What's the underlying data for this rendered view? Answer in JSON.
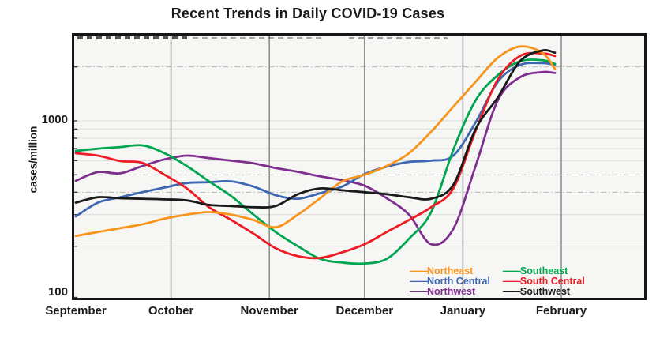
{
  "chart_data": {
    "type": "line",
    "title": "Recent Trends in Daily COVID-19 Cases",
    "ylabel": "cases/million",
    "y_scale": "log",
    "ylim": [
      100,
      3080
    ],
    "y_tick_labels": [
      {
        "value": 100,
        "label": "100"
      },
      {
        "value": 1000,
        "label": "1000"
      }
    ],
    "y_gridline_values": [
      200,
      300,
      400,
      500,
      600,
      700,
      800,
      900,
      1000,
      2000
    ],
    "y_dashdot_values": [
      400,
      500,
      2000
    ],
    "x_months": [
      "September",
      "October",
      "November",
      "December",
      "January",
      "February"
    ],
    "x_month_start_days": [
      0,
      30,
      61,
      91,
      122,
      153
    ],
    "x_days": [
      0,
      7,
      14,
      21,
      28,
      35,
      42,
      49,
      56,
      63,
      70,
      77,
      84,
      91,
      98,
      105,
      112,
      119,
      126,
      133,
      140,
      147,
      151
    ],
    "series": [
      {
        "name": "Northeast",
        "color": "#F7941D",
        "values": [
          228,
          240,
          252,
          265,
          285,
          300,
          310,
          300,
          280,
          255,
          300,
          370,
          460,
          500,
          560,
          660,
          870,
          1200,
          1650,
          2250,
          2600,
          2400,
          1950
        ]
      },
      {
        "name": "Southeast",
        "color": "#00A550",
        "values": [
          680,
          700,
          715,
          730,
          660,
          560,
          460,
          380,
          300,
          240,
          200,
          170,
          162,
          160,
          170,
          220,
          310,
          690,
          1300,
          1800,
          2150,
          2180,
          2080
        ]
      },
      {
        "name": "North Central",
        "color": "#3F67B1",
        "values": [
          293,
          350,
          375,
          400,
          425,
          450,
          455,
          460,
          430,
          385,
          368,
          395,
          430,
          505,
          555,
          590,
          600,
          640,
          980,
          1650,
          2050,
          2100,
          2050
        ]
      },
      {
        "name": "South Central",
        "color": "#EC1C24",
        "values": [
          660,
          640,
          597,
          583,
          500,
          420,
          330,
          280,
          235,
          195,
          176,
          172,
          185,
          205,
          240,
          280,
          330,
          420,
          880,
          1700,
          2300,
          2380,
          2300
        ]
      },
      {
        "name": "Northwest",
        "color": "#7E2F8E",
        "values": [
          463,
          518,
          510,
          560,
          610,
          640,
          620,
          600,
          580,
          545,
          520,
          490,
          467,
          435,
          370,
          300,
          205,
          250,
          560,
          1300,
          1750,
          1870,
          1850
        ]
      },
      {
        "name": "Southwest",
        "color": "#1A1A1A",
        "values": [
          350,
          375,
          370,
          368,
          365,
          360,
          340,
          335,
          330,
          335,
          390,
          420,
          410,
          400,
          390,
          375,
          368,
          440,
          900,
          1350,
          2150,
          2470,
          2400
        ]
      }
    ],
    "draw_order": [
      "Northwest",
      "North Central",
      "Southeast",
      "South Central",
      "Northeast",
      "Southwest"
    ],
    "legend": {
      "position": "inside-bottom-right",
      "columns": [
        [
          "Northeast",
          "North Central",
          "Northwest"
        ],
        [
          "Southeast",
          "South Central",
          "Southwest"
        ]
      ]
    },
    "grid": {
      "vertical_month_lines": true,
      "horizontal_log_minor_lines": true
    }
  }
}
